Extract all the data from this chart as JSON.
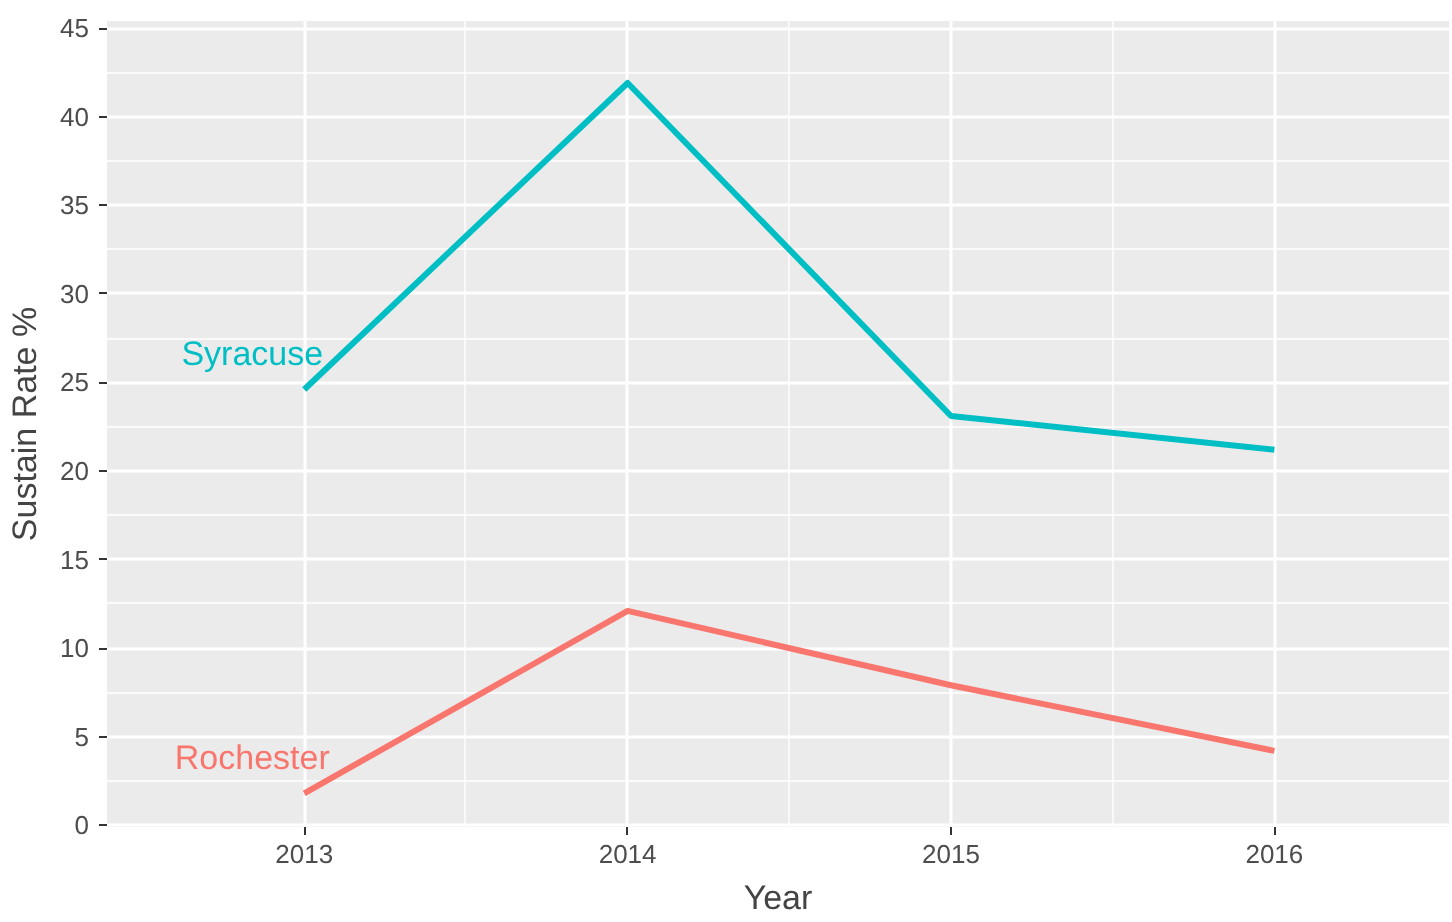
{
  "chart_data": {
    "type": "line",
    "xlabel": "Year",
    "ylabel": "Sustain Rate %",
    "x": [
      2013,
      2014,
      2015,
      2016
    ],
    "series": [
      {
        "name": "Syracuse",
        "color": "#00bfc4",
        "values": [
          24.6,
          41.9,
          23.1,
          21.2
        ]
      },
      {
        "name": "Rochester",
        "color": "#f8766d",
        "values": [
          1.8,
          12.1,
          7.9,
          4.2
        ]
      }
    ],
    "xlim": [
      2012.39,
      2016.54
    ],
    "ylim": [
      -0.1,
      45.4
    ],
    "xticks": [
      2013,
      2014,
      2015,
      2016
    ],
    "yticks": [
      0,
      5,
      10,
      15,
      20,
      25,
      30,
      35,
      40,
      45
    ],
    "grid": true,
    "line_style": "solid",
    "marker": "none"
  }
}
